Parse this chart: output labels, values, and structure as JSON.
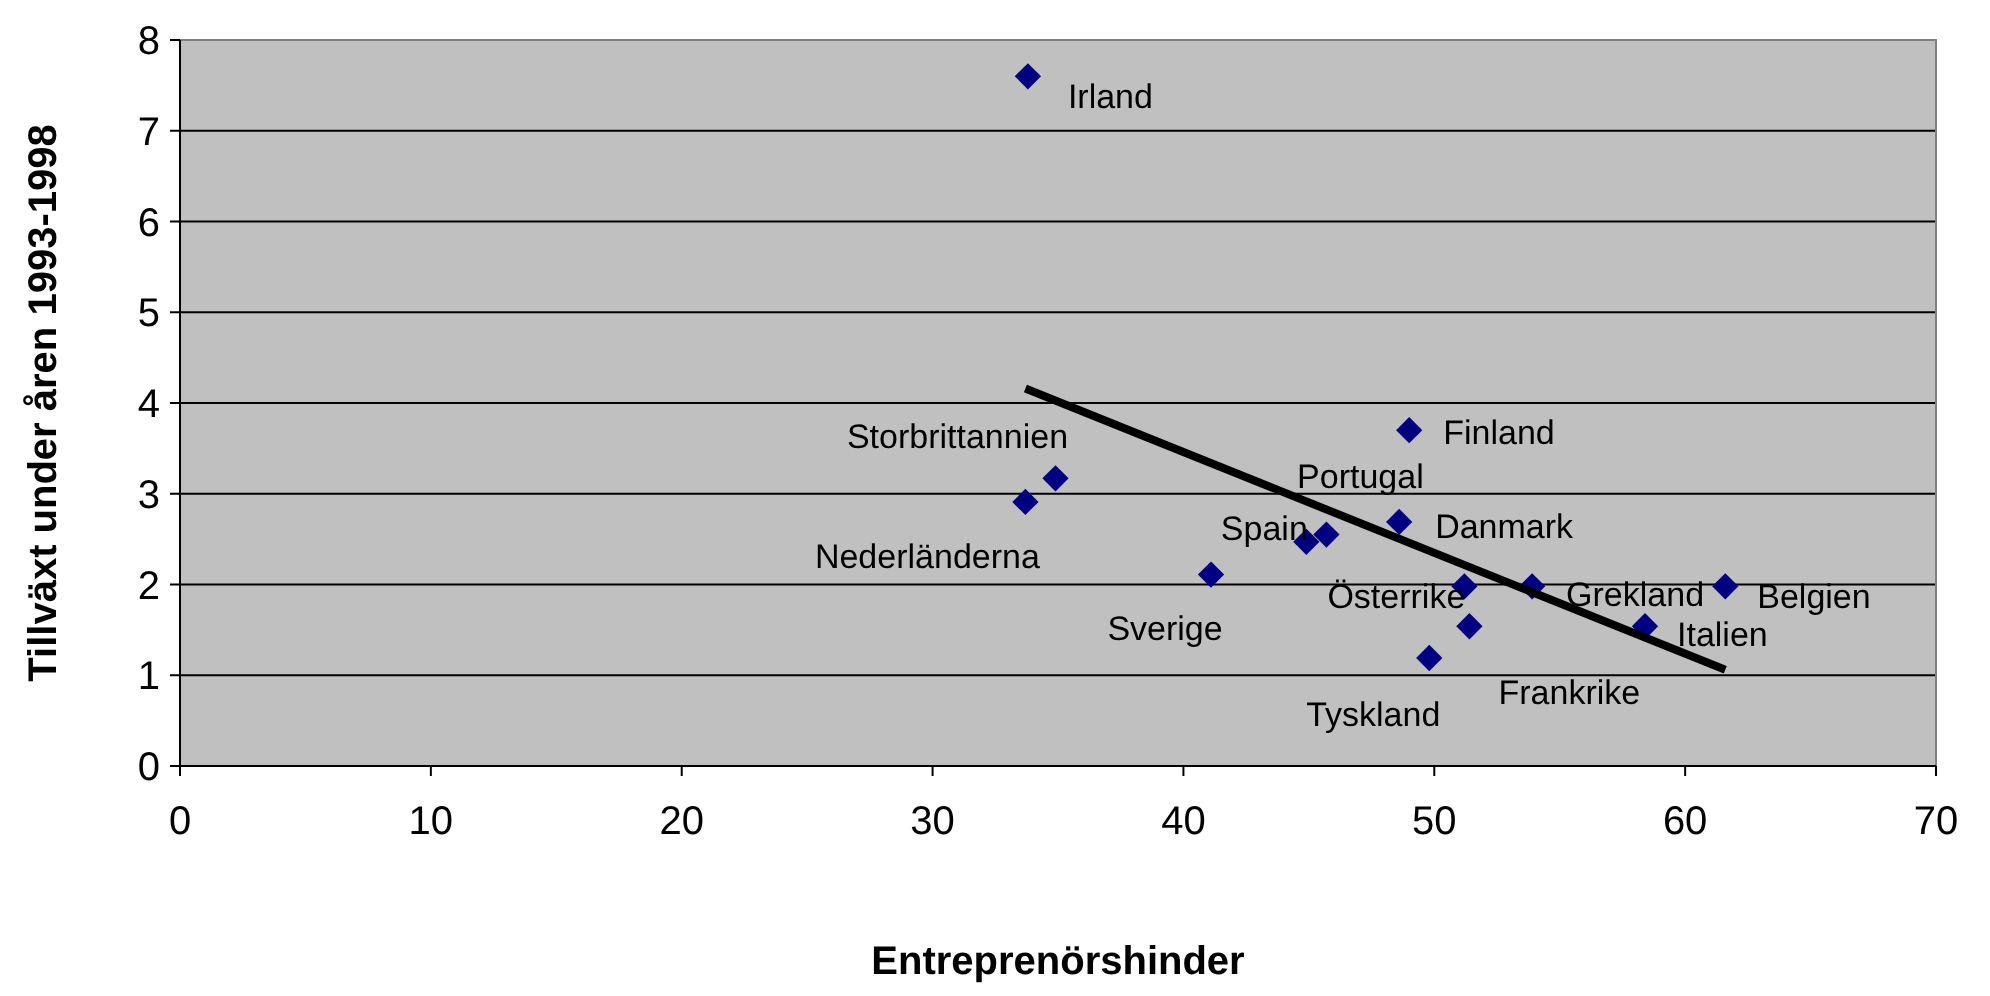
{
  "chart_data": {
    "type": "scatter",
    "xlabel": "Entreprenörshinder",
    "ylabel": "Tillväxt under åren 1993-1998",
    "xlim": [
      0,
      70
    ],
    "xticks": [
      0,
      10,
      20,
      30,
      40,
      50,
      60,
      70
    ],
    "ylim": [
      0,
      8
    ],
    "yticks": [
      0,
      1,
      2,
      3,
      4,
      5,
      6,
      7,
      8
    ],
    "grid": "y",
    "series": [
      {
        "marker": "diamond",
        "color": "#000080",
        "x": [
          33.8,
          34.9,
          33.7,
          41.1,
          44.9,
          45.7,
          48.6,
          49.0,
          51.2,
          51.4,
          49.8,
          53.9,
          58.4,
          61.6
        ],
        "values": [
          7.6,
          3.17,
          2.91,
          2.11,
          2.47,
          2.55,
          2.69,
          3.7,
          1.98,
          1.54,
          1.19,
          1.98,
          1.54,
          1.98
        ]
      },
      {
        "type": "line",
        "color": "#000000",
        "x": [
          33.7,
          61.6
        ],
        "values": [
          4.16,
          1.06
        ]
      }
    ],
    "annotations": [
      {
        "text": "Irland",
        "x": 33.8,
        "y": 7.6
      },
      {
        "text": "Storbrittannien",
        "x": 34.9,
        "y": 3.17
      },
      {
        "text": "Nederländerna",
        "x": 33.7,
        "y": 2.91
      },
      {
        "text": "Sverige",
        "x": 41.1,
        "y": 2.11
      },
      {
        "text": "Spain",
        "x": 44.9,
        "y": 2.47
      },
      {
        "text": "Portugal",
        "x": 45.7,
        "y": 2.55
      },
      {
        "text": "Danmark",
        "x": 48.6,
        "y": 2.69
      },
      {
        "text": "Finland",
        "x": 49.0,
        "y": 3.7
      },
      {
        "text": "Österrike",
        "x": 51.2,
        "y": 1.98
      },
      {
        "text": "Frankrike",
        "x": 51.4,
        "y": 1.54
      },
      {
        "text": "Tyskland",
        "x": 49.8,
        "y": 1.19
      },
      {
        "text": "Grekland",
        "x": 53.9,
        "y": 1.98
      },
      {
        "text": "Italien",
        "x": 58.4,
        "y": 1.54
      },
      {
        "text": "Belgien",
        "x": 61.6,
        "y": 1.98
      }
    ]
  }
}
